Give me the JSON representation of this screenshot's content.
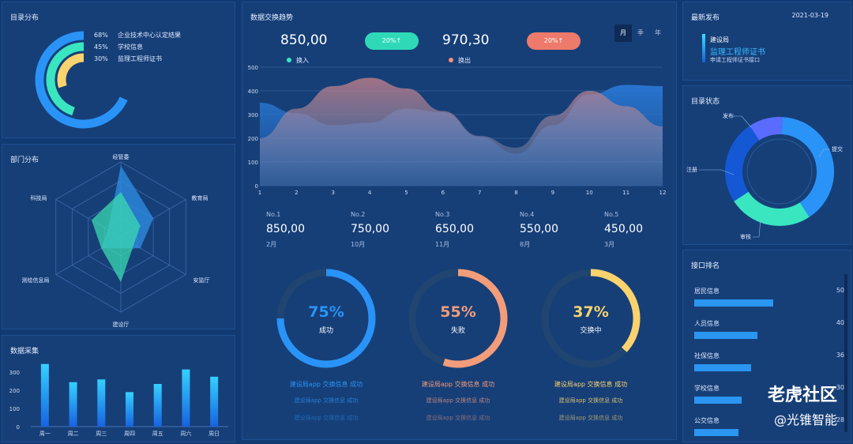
{
  "catalog": {
    "title": "目录分布",
    "items": [
      {
        "pct": "68%",
        "label": "企业技术中心认定结果",
        "color": "#2a93f7",
        "value": 68
      },
      {
        "pct": "45%",
        "label": "学校信息",
        "color": "#39e6c0",
        "value": 45
      },
      {
        "pct": "30%",
        "label": "监理工程师证书",
        "color": "#f9d36d",
        "value": 30
      }
    ]
  },
  "department": {
    "title": "部门分布",
    "axes": [
      "经管委",
      "教育局",
      "安监厅",
      "建设厅",
      "测绘信息局",
      "科技局"
    ]
  },
  "collection": {
    "title": "数据采集",
    "chart_data": {
      "type": "bar",
      "categories": [
        "周一",
        "周二",
        "周三",
        "周四",
        "周五",
        "周六",
        "周日"
      ],
      "values": [
        345,
        245,
        260,
        190,
        235,
        315,
        275
      ],
      "ylim": [
        0,
        370
      ],
      "yticks": [
        0,
        100,
        200,
        300
      ]
    }
  },
  "trend": {
    "title": "数据交换趋势",
    "in_value": "850,00",
    "in_label": "换入",
    "in_badge": "20%↑",
    "out_value": "970,30",
    "out_label": "换出",
    "out_badge": "20%↑",
    "periods": [
      "月",
      "季",
      "年"
    ],
    "active_period": "月",
    "chart_data": {
      "type": "area",
      "x": [
        1,
        2,
        3,
        4,
        5,
        6,
        7,
        8,
        9,
        10,
        11,
        12
      ],
      "series": [
        {
          "name": "换入",
          "values": [
            350,
            305,
            255,
            265,
            325,
            310,
            205,
            135,
            255,
            385,
            425,
            420
          ]
        },
        {
          "name": "换出",
          "values": [
            200,
            325,
            420,
            455,
            410,
            315,
            210,
            160,
            295,
            400,
            335,
            250
          ]
        }
      ],
      "ylim": [
        0,
        500
      ],
      "yticks": [
        0,
        100,
        200,
        300,
        400,
        500
      ]
    }
  },
  "ranking": [
    {
      "no": "No.1",
      "value": "850,00",
      "month": "2月"
    },
    {
      "no": "No.2",
      "value": "750,00",
      "month": "10月"
    },
    {
      "no": "No.3",
      "value": "650,00",
      "month": "11月"
    },
    {
      "no": "No.4",
      "value": "550,00",
      "month": "8月"
    },
    {
      "no": "No.5",
      "value": "450,00",
      "month": "3月"
    }
  ],
  "gauges": [
    {
      "pct": "75%",
      "label": "成功",
      "value": 75,
      "color": "#2a93f7"
    },
    {
      "pct": "55%",
      "label": "失败",
      "value": 55,
      "color": "#f39c7a"
    },
    {
      "pct": "37%",
      "label": "交换中",
      "value": 37,
      "color": "#fad36e"
    }
  ],
  "feeds": [
    {
      "color": "#2a93f7",
      "lines": [
        "建设局app 交换信息 成功",
        "建设局app 交换信息 成功",
        "建设局app 交换信息 成功"
      ]
    },
    {
      "color": "#f39c7a",
      "lines": [
        "建设局app 交换信息 成功",
        "建设局app 交换信息 成功",
        "建设局app 交换信息 成功"
      ]
    },
    {
      "color": "#fad36e",
      "lines": [
        "建设局app 交换信息 成功",
        "建设局app 交换信息 成功",
        "建设局app 交换信息 成功"
      ]
    }
  ],
  "latest": {
    "title": "最新发布",
    "date": "2021-03-19",
    "org": "建设局",
    "name": "监理工程师证书",
    "desc": "申请工程师证书接口"
  },
  "status": {
    "title": "目录状态",
    "labels": [
      "发布",
      "提交",
      "审核",
      "注册"
    ],
    "chart_data": {
      "type": "pie",
      "categories": [
        "提交",
        "审核",
        "注册",
        "发布"
      ],
      "values": [
        40,
        25,
        25,
        10
      ],
      "colors": [
        "#2a93f7",
        "#39e6c0",
        "#1558d6",
        "#5a6bff"
      ]
    }
  },
  "interfaces": {
    "title": "接口排名",
    "items": [
      {
        "name": "居民信息",
        "count": "50",
        "value": 50
      },
      {
        "name": "人员信息",
        "count": "40",
        "value": 40
      },
      {
        "name": "社保信息",
        "count": "36",
        "value": 36
      },
      {
        "name": "学校信息",
        "count": "30",
        "value": 30
      },
      {
        "name": "公交信息",
        "count": "28",
        "value": 28
      }
    ]
  },
  "watermark": {
    "line1": "老虎社区",
    "line2": "@光锥智能"
  }
}
